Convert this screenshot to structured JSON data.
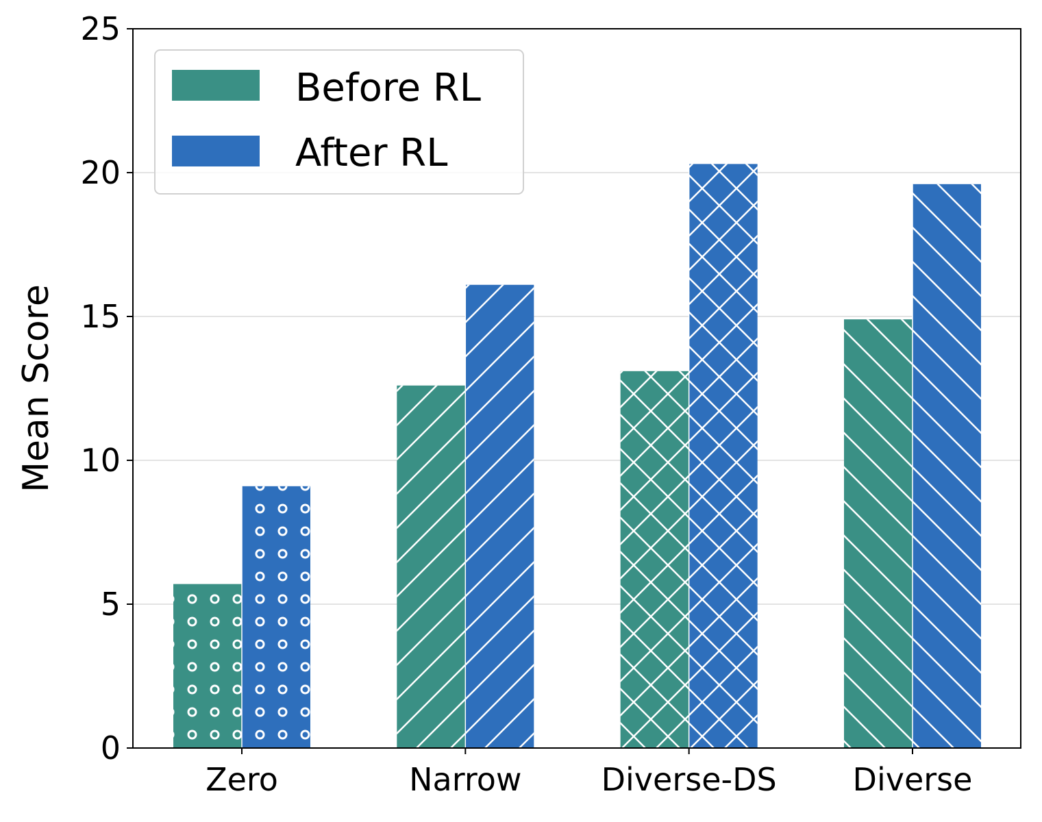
{
  "chart_data": {
    "type": "bar",
    "title": "",
    "xlabel": "",
    "ylabel": "Mean Score",
    "ylim": [
      0,
      25
    ],
    "yticks": [
      0,
      5,
      10,
      15,
      20,
      25
    ],
    "grid": "horizontal",
    "legend_position": "top-left",
    "categories": [
      "Zero",
      "Narrow",
      "Diverse-DS",
      "Diverse"
    ],
    "hatches": [
      "dots",
      "forward-diagonal",
      "crosshatch",
      "back-diagonal"
    ],
    "series": [
      {
        "name": "Before RL",
        "color": "#3a9085",
        "values": [
          5.7,
          12.6,
          13.1,
          14.9
        ]
      },
      {
        "name": "After RL",
        "color": "#2e6fbc",
        "values": [
          9.1,
          16.1,
          20.3,
          19.6
        ]
      }
    ]
  }
}
